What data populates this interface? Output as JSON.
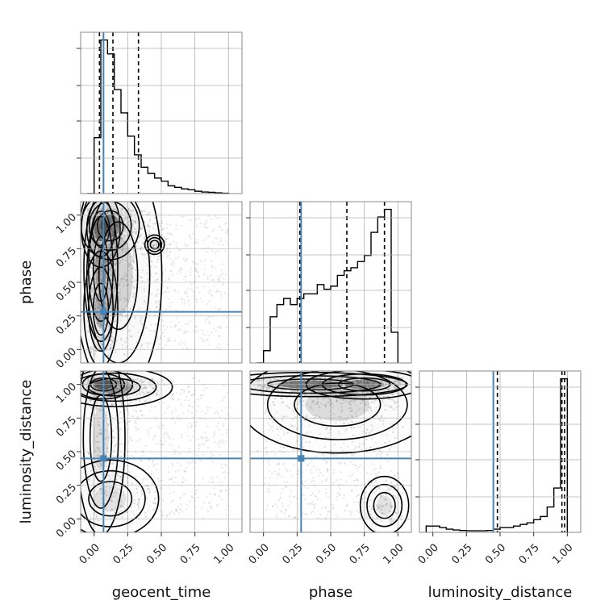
{
  "chart_data": {
    "type": "corner",
    "parameters": [
      "geocent_time",
      "phase",
      "luminosity_distance"
    ],
    "axis_range": [
      -0.1,
      1.1
    ],
    "ticks": [
      0.0,
      0.25,
      0.5,
      0.75,
      1.0
    ],
    "tick_labels": [
      "0.00",
      "0.25",
      "0.50",
      "0.75",
      "1.00"
    ],
    "grid": true,
    "colors": {
      "truth": "#4682b4",
      "contour": "#000000",
      "hist": "#000000",
      "samples": "#9a9a9a"
    },
    "truths": {
      "geocent_time": 0.07,
      "phase": 0.28,
      "luminosity_distance": 0.45
    },
    "quantiles": {
      "geocent_time": [
        0.04,
        0.14,
        0.33
      ],
      "phase": [
        0.27,
        0.62,
        0.9
      ],
      "luminosity_distance": [
        0.48,
        0.96,
        0.98
      ]
    },
    "histograms": {
      "geocent_time": {
        "edges": [
          -0.05,
          0.0,
          0.05,
          0.1,
          0.15,
          0.2,
          0.25,
          0.3,
          0.35,
          0.4,
          0.45,
          0.5,
          0.55,
          0.6,
          0.65,
          0.7,
          0.75,
          0.8,
          0.85,
          0.9,
          0.95,
          1.0
        ],
        "counts": [
          0.0,
          0.36,
          0.99,
          0.9,
          0.67,
          0.52,
          0.37,
          0.25,
          0.17,
          0.13,
          0.1,
          0.08,
          0.05,
          0.04,
          0.03,
          0.025,
          0.015,
          0.01,
          0.008,
          0.005,
          0.002
        ]
      },
      "phase": {
        "edges": [
          -0.05,
          0.0,
          0.05,
          0.1,
          0.15,
          0.2,
          0.25,
          0.3,
          0.35,
          0.4,
          0.45,
          0.5,
          0.55,
          0.6,
          0.65,
          0.7,
          0.75,
          0.8,
          0.85,
          0.9,
          0.95,
          1.0
        ],
        "counts": [
          0.0,
          0.08,
          0.3,
          0.38,
          0.42,
          0.38,
          0.42,
          0.45,
          0.45,
          0.51,
          0.48,
          0.5,
          0.57,
          0.6,
          0.62,
          0.66,
          0.7,
          0.85,
          0.95,
          1.0,
          0.2
        ]
      },
      "luminosity_distance": {
        "edges": [
          -0.05,
          0.0,
          0.05,
          0.1,
          0.15,
          0.2,
          0.25,
          0.3,
          0.35,
          0.4,
          0.45,
          0.5,
          0.55,
          0.6,
          0.65,
          0.7,
          0.75,
          0.8,
          0.85,
          0.9,
          0.95,
          1.0
        ],
        "counts": [
          0.04,
          0.04,
          0.03,
          0.02,
          0.015,
          0.012,
          0.01,
          0.01,
          0.01,
          0.012,
          0.02,
          0.03,
          0.03,
          0.04,
          0.05,
          0.06,
          0.08,
          0.1,
          0.16,
          0.28,
          0.97
        ]
      }
    },
    "density_2d": {
      "geocent_time|phase": [
        {
          "x": 0.05,
          "y": 0.9,
          "sx": 0.04,
          "sy": 0.08,
          "w": 1.0
        },
        {
          "x": 0.12,
          "y": 0.92,
          "sx": 0.06,
          "sy": 0.07,
          "w": 0.85
        },
        {
          "x": 0.05,
          "y": 0.6,
          "sx": 0.035,
          "sy": 0.15,
          "w": 0.6
        },
        {
          "x": 0.05,
          "y": 0.3,
          "sx": 0.035,
          "sy": 0.12,
          "w": 0.5
        },
        {
          "x": 0.18,
          "y": 0.55,
          "sx": 0.09,
          "sy": 0.25,
          "w": 0.3
        },
        {
          "x": 0.45,
          "y": 0.78,
          "sx": 0.02,
          "sy": 0.02,
          "w": 0.15
        }
      ],
      "geocent_time|luminosity_distance": [
        {
          "x": 0.07,
          "y": 1.0,
          "sx": 0.06,
          "sy": 0.03,
          "w": 1.0
        },
        {
          "x": 0.15,
          "y": 0.98,
          "sx": 0.12,
          "sy": 0.04,
          "w": 0.5
        },
        {
          "x": 0.05,
          "y": 0.6,
          "sx": 0.05,
          "sy": 0.2,
          "w": 0.25
        },
        {
          "x": 0.12,
          "y": 0.15,
          "sx": 0.1,
          "sy": 0.08,
          "w": 0.18
        }
      ],
      "phase|luminosity_distance": [
        {
          "x": 0.35,
          "y": 1.0,
          "sx": 0.2,
          "sy": 0.025,
          "w": 1.0
        },
        {
          "x": 0.75,
          "y": 1.0,
          "sx": 0.12,
          "sy": 0.03,
          "w": 0.75
        },
        {
          "x": 0.9,
          "y": 0.1,
          "sx": 0.05,
          "sy": 0.06,
          "w": 0.2
        },
        {
          "x": 0.55,
          "y": 0.85,
          "sx": 0.2,
          "sy": 0.1,
          "w": 0.25
        }
      ]
    },
    "labels": {
      "x": [
        "geocent_time",
        "phase",
        "luminosity_distance"
      ],
      "y": [
        "",
        "phase",
        "luminosity_distance"
      ]
    }
  }
}
